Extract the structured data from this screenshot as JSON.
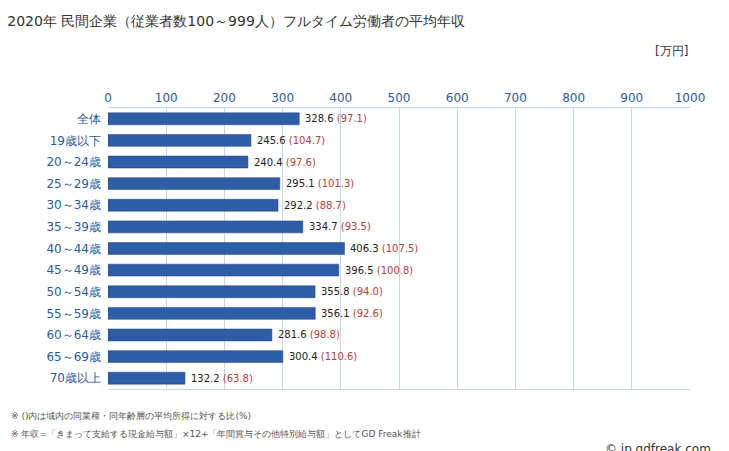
{
  "chart_data": {
    "type": "bar",
    "title": "2020年 民間企業（従業者数100～999人）フルタイム労働者の平均年収",
    "orientation": "horizontal",
    "categories": [
      "全体",
      "19歳以下",
      "20～24歳",
      "25～29歳",
      "30～34歳",
      "35～39歳",
      "40～44歳",
      "45～49歳",
      "50～54歳",
      "55～59歳",
      "60～64歳",
      "65～69歳",
      "70歳以上"
    ],
    "values": [
      328.6,
      245.6,
      240.4,
      295.1,
      292.2,
      334.7,
      406.3,
      396.5,
      355.8,
      356.1,
      281.6,
      300.4,
      132.2
    ],
    "color": "#2f5ea8",
    "data_labels": true,
    "ratio": {
      "values": [
        97.1,
        104.7,
        97.6,
        101.3,
        88.7,
        93.5,
        107.5,
        100.8,
        94.0,
        92.6,
        98.8,
        110.6,
        63.8
      ],
      "value_labels": [
        "(97.1)",
        "(104.7)",
        "(97.6)",
        "(101.3)",
        "(88.7)",
        "(93.5)",
        "(107.5)",
        "(100.8)",
        "(94.0)",
        "(92.6)",
        "(98.8)",
        "(110.6)",
        "(63.8)"
      ],
      "color": "#b5413b"
    },
    "xlim": [
      0,
      1000
    ],
    "xticks": [
      0,
      100,
      200,
      300,
      400,
      500,
      600,
      700,
      800,
      900,
      1000
    ],
    "grid": true,
    "unit_label": "[万円]",
    "notes": [
      "※ ()内は域内の同業種・同年齢層の平均所得に対する比(%)",
      "※ 年収=「きまって支給する現金給与額」×12+「年間賞与その他特別給与額」としてGD Freak推計"
    ],
    "source": "© jp.gdfreak.com"
  }
}
